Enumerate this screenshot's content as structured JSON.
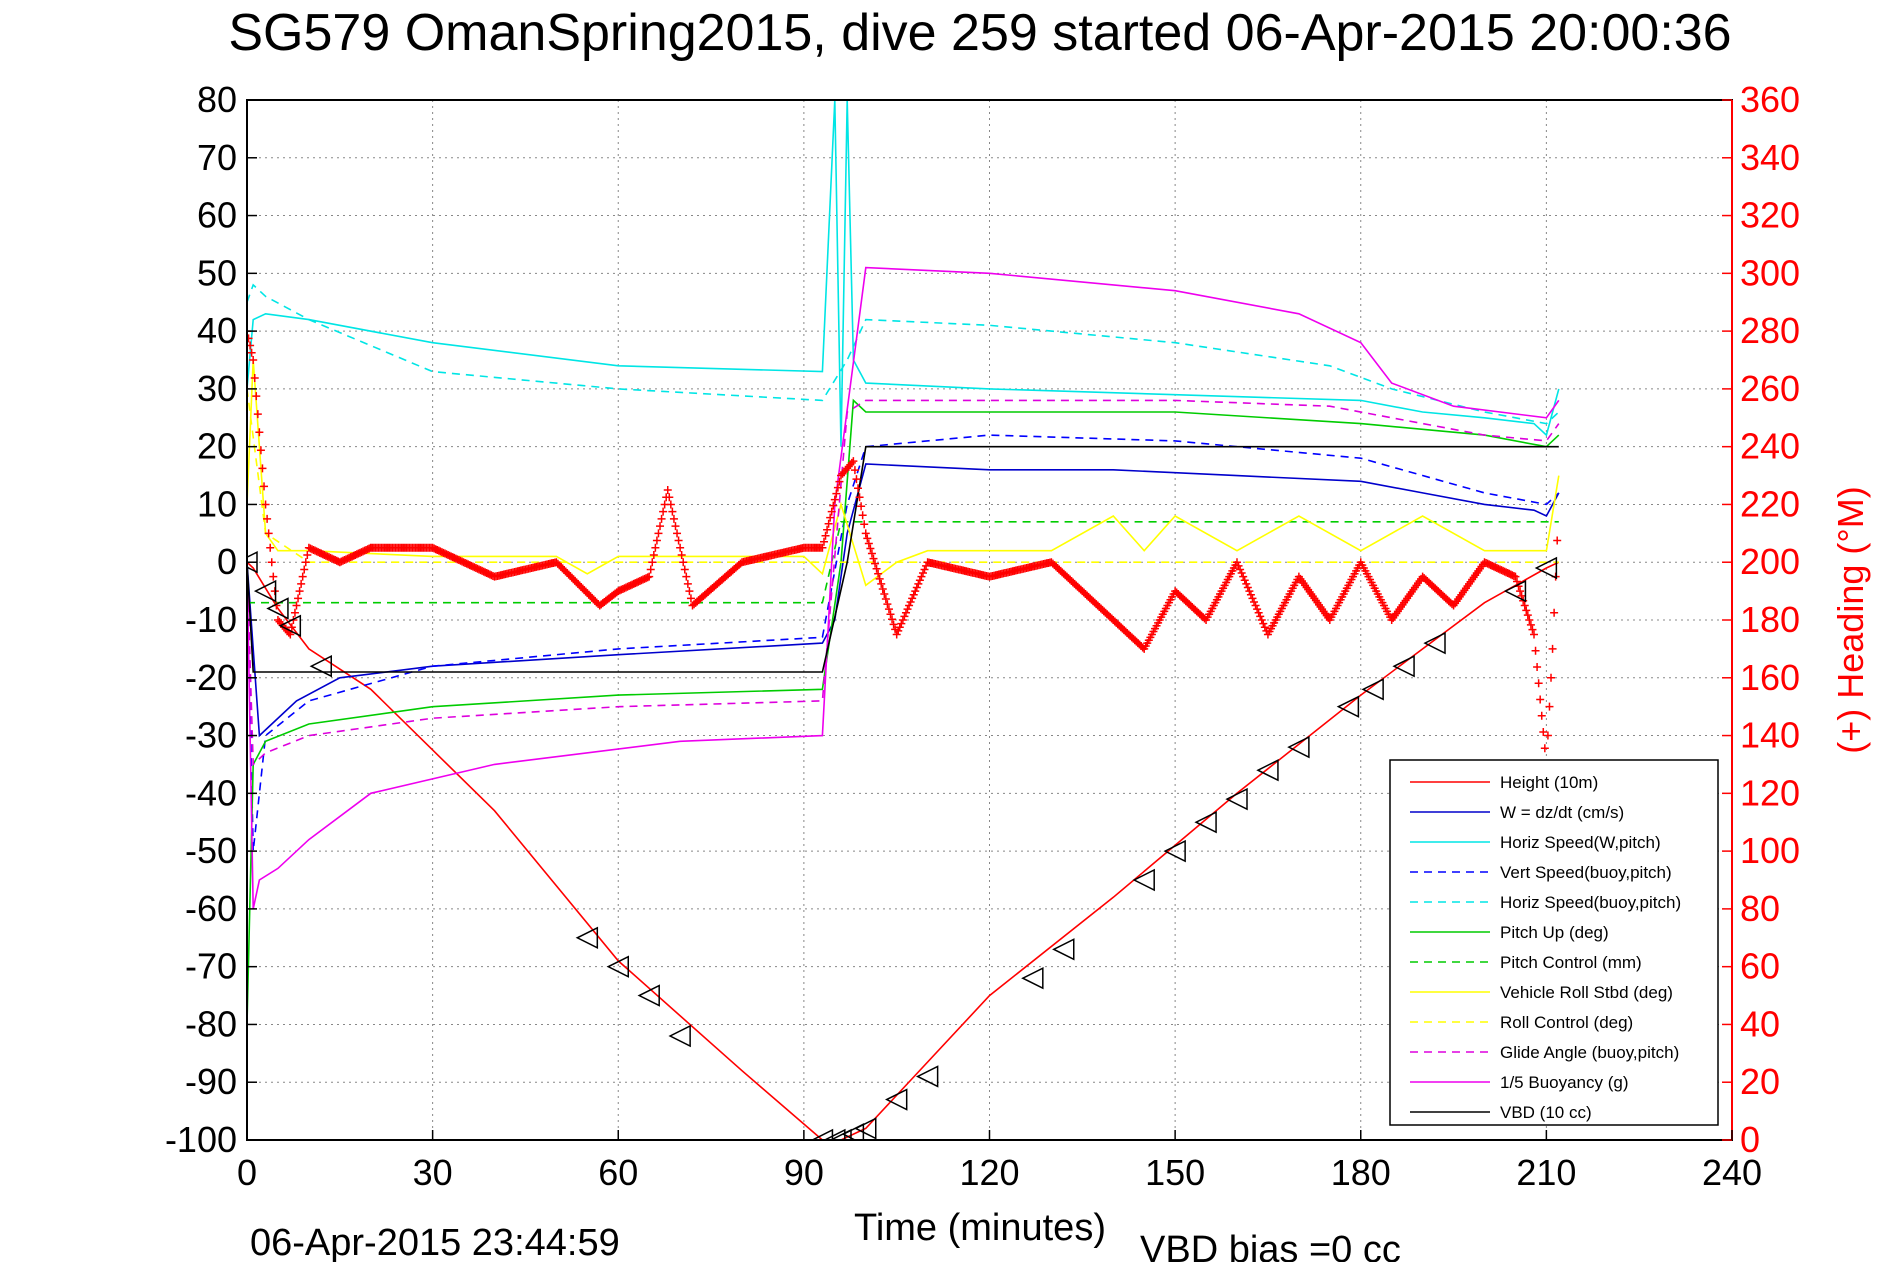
{
  "chart_data": {
    "type": "line",
    "title": "SG579 OmanSpring2015, dive 259 started 06-Apr-2015 20:00:36",
    "xlabel": "Time (minutes)",
    "ylabel_right": "(+) Heading (°M)",
    "xlim": [
      0,
      240
    ],
    "ylim_left": [
      -100,
      80
    ],
    "ylim_right": [
      0,
      360
    ],
    "x_ticks": [
      "0",
      "30",
      "60",
      "90",
      "120",
      "150",
      "180",
      "210",
      "240"
    ],
    "y_ticks_left": [
      "80",
      "70",
      "60",
      "50",
      "40",
      "30",
      "20",
      "10",
      "0",
      "-10",
      "-20",
      "-30",
      "-40",
      "-50",
      "-60",
      "-70",
      "-80",
      "-90",
      "-100"
    ],
    "y_ticks_right": [
      "360",
      "340",
      "320",
      "300",
      "280",
      "260",
      "240",
      "220",
      "200",
      "180",
      "160",
      "140",
      "120",
      "100",
      "80",
      "60",
      "40",
      "20",
      "0"
    ],
    "grid": true,
    "legend_position": "bottom-right",
    "footer_left": "06-Apr-2015 23:44:59",
    "footer_right": "VBD bias =0 cc",
    "series": [
      {
        "name": "Height (10m)",
        "color": "#ff0000",
        "dash": "solid",
        "x": [
          0,
          1,
          5,
          10,
          20,
          40,
          60,
          80,
          93,
          96,
          100,
          120,
          140,
          160,
          180,
          200,
          210,
          212
        ],
        "y": [
          0,
          -1,
          -8,
          -15,
          -22,
          -43,
          -69,
          -88,
          -100,
          -100,
          -98,
          -75,
          -58,
          -40,
          -23,
          -7,
          -1,
          0
        ]
      },
      {
        "name": "W = dz/dt (cm/s)",
        "color": "#0000cc",
        "dash": "solid",
        "x": [
          0,
          1,
          2,
          4,
          8,
          15,
          30,
          60,
          93,
          95,
          97,
          100,
          120,
          140,
          160,
          180,
          190,
          200,
          208,
          210,
          212
        ],
        "y": [
          0,
          -15,
          -30,
          -28,
          -24,
          -20,
          -18,
          -16,
          -14,
          -10,
          5,
          17,
          16,
          16,
          15,
          14,
          12,
          10,
          9,
          8,
          12
        ]
      },
      {
        "name": "Horiz Speed(W,pitch)",
        "color": "#00e5e5",
        "dash": "solid",
        "x": [
          0,
          1,
          3,
          10,
          30,
          60,
          93,
          95,
          96,
          97,
          98,
          100,
          120,
          150,
          180,
          190,
          200,
          208,
          210,
          212
        ],
        "y": [
          30,
          42,
          43,
          42,
          38,
          34,
          33,
          80,
          20,
          80,
          35,
          31,
          30,
          29,
          28,
          26,
          25,
          24,
          22,
          30
        ]
      },
      {
        "name": "Vert Speed(buoy,pitch)",
        "color": "#0000ff",
        "dash": "dashed",
        "x": [
          0,
          1,
          3,
          10,
          30,
          60,
          93,
          97,
          100,
          120,
          150,
          180,
          200,
          210,
          212
        ],
        "y": [
          0,
          -50,
          -30,
          -24,
          -18,
          -15,
          -13,
          10,
          20,
          22,
          21,
          18,
          12,
          10,
          12
        ]
      },
      {
        "name": "Horiz Speed(buoy,pitch)",
        "color": "#00e5e5",
        "dash": "dashed",
        "x": [
          0,
          1,
          3,
          10,
          30,
          60,
          93,
          97,
          100,
          120,
          150,
          175,
          185,
          200,
          210,
          212
        ],
        "y": [
          45,
          48,
          46,
          42,
          33,
          30,
          28,
          35,
          42,
          41,
          38,
          34,
          30,
          26,
          24,
          26
        ]
      },
      {
        "name": "Pitch Up (deg)",
        "color": "#00cc00",
        "dash": "solid",
        "x": [
          0,
          1,
          3,
          10,
          30,
          60,
          93,
          96,
          98,
          100,
          120,
          150,
          180,
          200,
          210,
          212
        ],
        "y": [
          -80,
          -35,
          -31,
          -28,
          -25,
          -23,
          -22,
          0,
          28,
          26,
          26,
          26,
          24,
          22,
          20,
          22
        ]
      },
      {
        "name": "Pitch Control (mm)",
        "color": "#00cc00",
        "dash": "dashed",
        "x": [
          0,
          3,
          93,
          96,
          212
        ],
        "y": [
          -7,
          -7,
          -7,
          7,
          7
        ]
      },
      {
        "name": "Vehicle Roll Stbd (deg)",
        "color": "#ffff00",
        "dash": "solid",
        "x": [
          0,
          1,
          2,
          3,
          5,
          10,
          30,
          50,
          55,
          60,
          90,
          93,
          96,
          100,
          105,
          110,
          130,
          140,
          145,
          150,
          160,
          170,
          180,
          190,
          200,
          210,
          212
        ],
        "y": [
          10,
          35,
          20,
          5,
          2,
          2,
          1,
          1,
          -2,
          1,
          1,
          -2,
          10,
          -4,
          0,
          2,
          2,
          8,
          2,
          8,
          2,
          8,
          2,
          8,
          2,
          2,
          15
        ]
      },
      {
        "name": "Roll Control (deg)",
        "color": "#ffff00",
        "dash": "dashed",
        "x": [
          0,
          3,
          10,
          93,
          96,
          212
        ],
        "y": [
          30,
          5,
          0,
          0,
          0,
          0
        ]
      },
      {
        "name": "Glide Angle (buoy,pitch)",
        "color": "#dd00dd",
        "dash": "dashed",
        "x": [
          0,
          1,
          3,
          10,
          30,
          60,
          93,
          97,
          100,
          120,
          150,
          175,
          185,
          200,
          210,
          212
        ],
        "y": [
          0,
          -35,
          -33,
          -30,
          -27,
          -25,
          -24,
          26,
          28,
          28,
          28,
          27,
          25,
          22,
          21,
          24
        ]
      },
      {
        "name": "1/5 Buoyancy (g)",
        "color": "#ee00ee",
        "dash": "solid",
        "x": [
          0,
          1,
          2,
          5,
          10,
          20,
          40,
          70,
          93,
          95,
          100,
          120,
          150,
          170,
          180,
          185,
          195,
          210,
          212
        ],
        "y": [
          0,
          -60,
          -55,
          -53,
          -48,
          -40,
          -35,
          -31,
          -30,
          10,
          51,
          50,
          47,
          43,
          38,
          31,
          27,
          25,
          28
        ]
      },
      {
        "name": "VBD (10 cc)",
        "color": "#000000",
        "dash": "solid",
        "x": [
          0,
          1,
          93,
          97,
          100,
          212
        ],
        "y": [
          0,
          -19,
          -19,
          0,
          20,
          20
        ]
      },
      {
        "name": "Heading",
        "axis": "right",
        "color": "#ff0000",
        "marker": "+",
        "x": [
          0,
          1,
          3,
          5,
          7,
          10,
          15,
          20,
          30,
          40,
          50,
          57,
          60,
          65,
          68,
          72,
          80,
          90,
          93,
          96,
          98,
          100,
          105,
          110,
          120,
          130,
          140,
          145,
          150,
          155,
          160,
          165,
          170,
          175,
          180,
          185,
          190,
          195,
          200,
          205,
          208,
          210,
          211,
          212
        ],
        "y": [
          280,
          270,
          220,
          180,
          175,
          205,
          200,
          205,
          205,
          195,
          200,
          185,
          190,
          195,
          225,
          185,
          200,
          205,
          205,
          230,
          235,
          210,
          175,
          200,
          195,
          200,
          180,
          170,
          190,
          180,
          200,
          175,
          195,
          180,
          200,
          180,
          195,
          185,
          200,
          195,
          175,
          130,
          170,
          220
        ]
      },
      {
        "name": "Apogee markers",
        "marker": "triangle",
        "x": [
          0,
          3,
          5,
          7,
          12,
          55,
          60,
          65,
          70,
          93,
          95,
          96,
          98,
          100,
          105,
          110,
          127,
          132,
          145,
          150,
          155,
          160,
          165,
          170,
          178,
          182,
          187,
          192,
          205,
          210
        ],
        "y": [
          0,
          -5,
          -8,
          -11,
          -18,
          -65,
          -70,
          -75,
          -82,
          -100,
          -100,
          -100,
          -99,
          -98,
          -93,
          -89,
          -72,
          -67,
          -55,
          -50,
          -45,
          -41,
          -36,
          -32,
          -25,
          -22,
          -18,
          -14,
          -5,
          -1
        ]
      }
    ]
  }
}
